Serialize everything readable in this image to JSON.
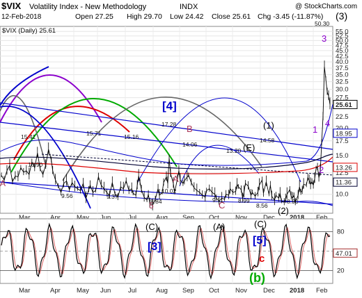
{
  "header": {
    "symbol": "$VIX",
    "title_rest": "Volatility Index - New Methodology",
    "exchange": "INDX",
    "copyright": "@ StockCharts.com",
    "date": "12-Feb-2018",
    "open_label": "Open 27.25",
    "high_label": "High 29.70",
    "low_label": "Low 24.42",
    "close_label": "Close 25.61",
    "chg_label": "Chg -3.45 (-11.87%)",
    "change_color": "#cc0000",
    "legend_label": "$VIX (Daily) 25.61"
  },
  "colors": {
    "price": "#000000",
    "blue": "#0000cc",
    "red": "#dd0000",
    "green": "#00aa00",
    "purple": "#8b00cc",
    "maroon": "#aa3355",
    "gray": "#666666",
    "indicator": "#a52a2a",
    "darkline": "#000033"
  },
  "chart_data": [
    {
      "type": "line",
      "title": "$VIX (Daily)",
      "scale": "log",
      "ylim": [
        8.2,
        58
      ],
      "yticks": [
        "55.0",
        "52.5",
        "50.0",
        "47.5",
        "45.0",
        "42.5",
        "40.0",
        "37.5",
        "35.0",
        "32.5",
        "30.0",
        "27.5",
        "25.0",
        "22.5",
        "20.0",
        "17.5",
        "15.0",
        "12.5",
        "10.0"
      ],
      "months": [
        "Mar",
        "Apr",
        "May",
        "Jun",
        "Jul",
        "Aug",
        "Sep",
        "Oct",
        "Nov",
        "Dec",
        "2018",
        "Feb"
      ],
      "series": [
        {
          "values": [
            [
              0,
              12.2
            ],
            [
              4,
              11.6
            ],
            [
              8,
              12.8
            ],
            [
              12,
              13.5
            ],
            [
              16,
              11.4
            ],
            [
              20,
              12.1
            ],
            [
              24,
              12.0
            ],
            [
              28,
              13.2
            ],
            [
              32,
              12.6
            ],
            [
              36,
              12.8
            ],
            [
              40,
              12.3
            ],
            [
              44,
              14.0
            ],
            [
              48,
              13.2
            ],
            [
              52,
              15.4
            ],
            [
              56,
              13.0
            ],
            [
              60,
              12.3
            ],
            [
              64,
              13.6
            ],
            [
              68,
              16.0
            ],
            [
              72,
              14.3
            ],
            [
              74,
              12.8
            ],
            [
              78,
              11.6
            ],
            [
              82,
              10.9
            ],
            [
              86,
              10.2
            ],
            [
              90,
              11.2
            ],
            [
              94,
              11.5
            ],
            [
              98,
              10.5
            ],
            [
              102,
              11.3
            ],
            [
              106,
              10.8
            ],
            [
              110,
              10.6
            ],
            [
              114,
              10.4
            ],
            [
              118,
              11.2
            ],
            [
              122,
              9.6
            ],
            [
              126,
              10.5
            ],
            [
              128,
              11.0
            ],
            [
              132,
              10.2
            ],
            [
              136,
              10.4
            ],
            [
              140,
              12.0
            ],
            [
              144,
              11.0
            ],
            [
              148,
              10.6
            ],
            [
              152,
              10.2
            ],
            [
              156,
              9.9
            ],
            [
              160,
              11.3
            ],
            [
              164,
              10.0
            ],
            [
              168,
              9.7
            ],
            [
              172,
              10.8
            ],
            [
              176,
              10.6
            ],
            [
              180,
              11.5
            ],
            [
              184,
              10.4
            ],
            [
              188,
              10.6
            ],
            [
              190,
              10.1
            ],
            [
              194,
              9.9
            ],
            [
              196,
              11.0
            ],
            [
              198,
              12.1
            ],
            [
              200,
              11.3
            ],
            [
              202,
              10.5
            ],
            [
              206,
              9.7
            ],
            [
              210,
              9.4
            ],
            [
              212,
              10.0
            ],
            [
              214,
              9.1
            ],
            [
              218,
              8.9
            ],
            [
              222,
              9.5
            ],
            [
              226,
              10.6
            ],
            [
              228,
              9.9
            ],
            [
              232,
              10.2
            ],
            [
              234,
              11.3
            ],
            [
              238,
              12.0
            ],
            [
              240,
              11.2
            ],
            [
              242,
              14.6
            ],
            [
              244,
              12.4
            ],
            [
              248,
              11.2
            ],
            [
              250,
              10.2
            ],
            [
              254,
              11.8
            ],
            [
              256,
              12.8
            ],
            [
              258,
              11.6
            ],
            [
              262,
              11.2
            ],
            [
              264,
              11.5
            ],
            [
              268,
              12.0
            ],
            [
              270,
              12.2
            ],
            [
              274,
              11.3
            ],
            [
              278,
              10.7
            ],
            [
              282,
              10.4
            ],
            [
              286,
              10.2
            ],
            [
              290,
              9.9
            ],
            [
              294,
              9.7
            ],
            [
              296,
              10.4
            ],
            [
              300,
              10.6
            ],
            [
              304,
              10.2
            ],
            [
              308,
              10.0
            ],
            [
              310,
              9.6
            ],
            [
              314,
              9.3
            ],
            [
              318,
              9.6
            ],
            [
              322,
              9.5
            ],
            [
              324,
              10.0
            ],
            [
              328,
              9.9
            ],
            [
              330,
              10.6
            ],
            [
              334,
              10.2
            ],
            [
              338,
              10.3
            ],
            [
              340,
              11.1
            ],
            [
              342,
              10.8
            ],
            [
              346,
              10.5
            ],
            [
              348,
              9.6
            ],
            [
              350,
              10.2
            ],
            [
              352,
              11.2
            ],
            [
              356,
              10.9
            ],
            [
              360,
              9.9
            ],
            [
              362,
              10.2
            ],
            [
              366,
              9.8
            ],
            [
              370,
              10.2
            ],
            [
              372,
              11.0
            ],
            [
              376,
              11.6
            ],
            [
              378,
              10.1
            ],
            [
              382,
              11.4
            ],
            [
              386,
              10.0
            ],
            [
              388,
              11.0
            ],
            [
              390,
              9.8
            ],
            [
              394,
              9.4
            ],
            [
              396,
              9.9
            ],
            [
              400,
              9.6
            ],
            [
              402,
              10.1
            ],
            [
              404,
              9.3
            ],
            [
              408,
              9.2
            ],
            [
              410,
              9.5
            ],
            [
              412,
              10.0
            ],
            [
              416,
              10.5
            ],
            [
              418,
              9.8
            ],
            [
              420,
              9.6
            ],
            [
              422,
              9.9
            ],
            [
              424,
              9.2
            ],
            [
              428,
              9.9
            ],
            [
              430,
              10.8
            ],
            [
              432,
              10.2
            ],
            [
              434,
              10.4
            ],
            [
              436,
              11.1
            ],
            [
              440,
              11.0
            ],
            [
              442,
              11.9
            ],
            [
              444,
              11.6
            ],
            [
              446,
              11.1
            ],
            [
              448,
              11.4
            ],
            [
              450,
              11.0
            ],
            [
              452,
              11.8
            ],
            [
              454,
              13.1
            ],
            [
              456,
              13.3
            ],
            [
              458,
              11.9
            ],
            [
              460,
              12.8
            ],
            [
              462,
              17.2
            ],
            [
              464,
              22.5
            ],
            [
              466,
              38.0
            ],
            [
              468,
              33.5
            ],
            [
              470,
              29.2
            ],
            [
              472,
              28.0
            ],
            [
              474,
              25.61
            ]
          ]
        }
      ],
      "price_labels": [
        "15.41",
        "15.71",
        "15.16",
        "17.28",
        "14.06",
        "13.20",
        "14.58",
        "10.90",
        "9.56",
        "9.37",
        "8.84",
        "10.02",
        "9.11",
        "8.99",
        "8.56",
        "8.90",
        "50.30"
      ],
      "right_tags": [
        {
          "value": "25.61",
          "color": "#000000"
        },
        {
          "value": "18.95",
          "color": "#0000cc"
        },
        {
          "value": "13.26",
          "color": "#dd0000"
        },
        {
          "value": "11.36",
          "color": "#000033"
        }
      ],
      "wave_labels": {
        "w4": "[4]",
        "wB": "B",
        "wA": "A",
        "wC": "C",
        "w5": "5",
        "wE": "(E)",
        "w1p": "(1)",
        "w2p": "(2)",
        "w3p": "(3)",
        "n1": "1",
        "n2": "2",
        "n3": "3",
        "n4": "4",
        "wAleft": "A"
      }
    },
    {
      "type": "line",
      "title": "Oscillator",
      "ylim": [
        0,
        100
      ],
      "yticks": [
        "80",
        "50",
        "20"
      ],
      "levels": [
        80,
        50,
        20
      ],
      "current_value": "47.01",
      "months": [
        "Mar",
        "Apr",
        "May",
        "Jun",
        "Jul",
        "Aug",
        "Sep",
        "Oct",
        "Nov",
        "Dec",
        "2018",
        "Feb"
      ],
      "wave_labels": {
        "wC1": "(C)",
        "wA": "(A)",
        "wC2": "(C)",
        "w3": "[3]",
        "w5": "[5]",
        "wc": "c",
        "wb": "(b)"
      }
    }
  ]
}
